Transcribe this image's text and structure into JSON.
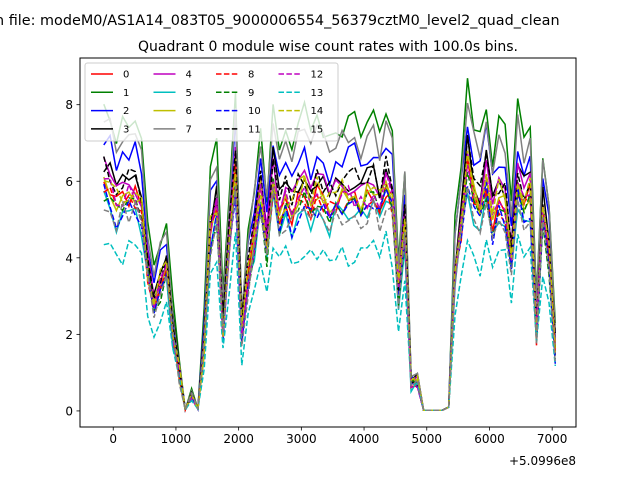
{
  "figure": {
    "suptitle": "n file: modeM0/AS1A14_083T05_9000006554_56379cztM0_level2_quad_clean",
    "title": "Quadrant 0 module wise count rates with 100.0s bins.",
    "offset_text": "+5.0996e8"
  },
  "chart_data": {
    "type": "line",
    "title": "Quadrant 0 module wise count rates with 100.0s bins.",
    "xlabel": "",
    "ylabel": "",
    "xlim": [
      -530,
      7380
    ],
    "ylim": [
      -0.42,
      9.22
    ],
    "x_ticks": [
      0,
      1000,
      2000,
      3000,
      4000,
      5000,
      6000,
      7000
    ],
    "y_ticks": [
      0,
      2,
      4,
      6,
      8
    ],
    "x_offset": 509960000,
    "grid": false,
    "legend_position": "top-left",
    "legend_ncol": 4,
    "x": [
      -150,
      -50,
      50,
      150,
      250,
      350,
      450,
      550,
      650,
      750,
      850,
      950,
      1050,
      1150,
      1250,
      1350,
      1450,
      1550,
      1650,
      1750,
      1850,
      1950,
      2050,
      2150,
      2250,
      2350,
      2450,
      2550,
      2650,
      2750,
      2850,
      2950,
      3050,
      3150,
      3250,
      3350,
      3450,
      3550,
      3650,
      3750,
      3850,
      3950,
      4050,
      4150,
      4250,
      4350,
      4450,
      4550,
      4650,
      4750,
      4850,
      4950,
      5050,
      5150,
      5250,
      5350,
      5450,
      5550,
      5650,
      5750,
      5850,
      5950,
      6050,
      6150,
      6250,
      6350,
      6450,
      6550,
      6650,
      6750,
      6850,
      6950,
      7050
    ],
    "profile": [
      5.95,
      5.75,
      5.3,
      5.55,
      5.6,
      5.6,
      5.2,
      3.6,
      2.8,
      3.25,
      3.5,
      2.05,
      1.0,
      0.03,
      0.4,
      0.05,
      1.8,
      4.6,
      5.2,
      2.15,
      4.3,
      6.2,
      2.0,
      3.5,
      4.4,
      5.6,
      4.2,
      6.0,
      5.0,
      5.4,
      5.1,
      5.5,
      5.7,
      5.3,
      5.6,
      5.5,
      5.2,
      5.45,
      5.5,
      5.5,
      5.6,
      5.3,
      5.55,
      5.7,
      5.3,
      5.9,
      5.5,
      3.1,
      4.8,
      0.7,
      0.75,
      0.02,
      0.02,
      0.02,
      0.02,
      0.1,
      3.6,
      4.8,
      6.4,
      5.5,
      5.2,
      6.0,
      4.9,
      5.5,
      5.3,
      4.0,
      5.9,
      5.3,
      5.6,
      2.0,
      5.1,
      4.0,
      1.6
    ],
    "series": [
      {
        "name": "0",
        "color": "#ff0000",
        "style": "solid",
        "scale": 1.0,
        "seed": 1
      },
      {
        "name": "1",
        "color": "#008000",
        "style": "solid",
        "scale": 1.36,
        "seed": 2
      },
      {
        "name": "2",
        "color": "#0000ff",
        "style": "solid",
        "scale": 1.2,
        "seed": 3
      },
      {
        "name": "3",
        "color": "#000000",
        "style": "solid",
        "scale": 1.1,
        "seed": 4
      },
      {
        "name": "4",
        "color": "#bf00bf",
        "style": "solid",
        "scale": 1.07,
        "seed": 5
      },
      {
        "name": "5",
        "color": "#00bfbf",
        "style": "solid",
        "scale": 0.94,
        "seed": 6
      },
      {
        "name": "6",
        "color": "#bfbf00",
        "style": "solid",
        "scale": 1.02,
        "seed": 7
      },
      {
        "name": "7",
        "color": "#808080",
        "style": "solid",
        "scale": 1.28,
        "seed": 8
      },
      {
        "name": "8",
        "color": "#ff0000",
        "style": "dashed",
        "scale": 0.99,
        "seed": 9
      },
      {
        "name": "9",
        "color": "#008000",
        "style": "dashed",
        "scale": 0.97,
        "seed": 10
      },
      {
        "name": "10",
        "color": "#0000ff",
        "style": "dashed",
        "scale": 0.95,
        "seed": 11
      },
      {
        "name": "11",
        "color": "#000000",
        "style": "dashed",
        "scale": 1.09,
        "seed": 12
      },
      {
        "name": "12",
        "color": "#bf00bf",
        "style": "dashed",
        "scale": 1.01,
        "seed": 13
      },
      {
        "name": "13",
        "color": "#00bfbf",
        "style": "dashed",
        "scale": 0.74,
        "seed": 14
      },
      {
        "name": "14",
        "color": "#bfbf00",
        "style": "dashed",
        "scale": 1.04,
        "seed": 15
      },
      {
        "name": "15",
        "color": "#808080",
        "style": "dashed",
        "scale": 0.93,
        "seed": 16
      }
    ]
  }
}
